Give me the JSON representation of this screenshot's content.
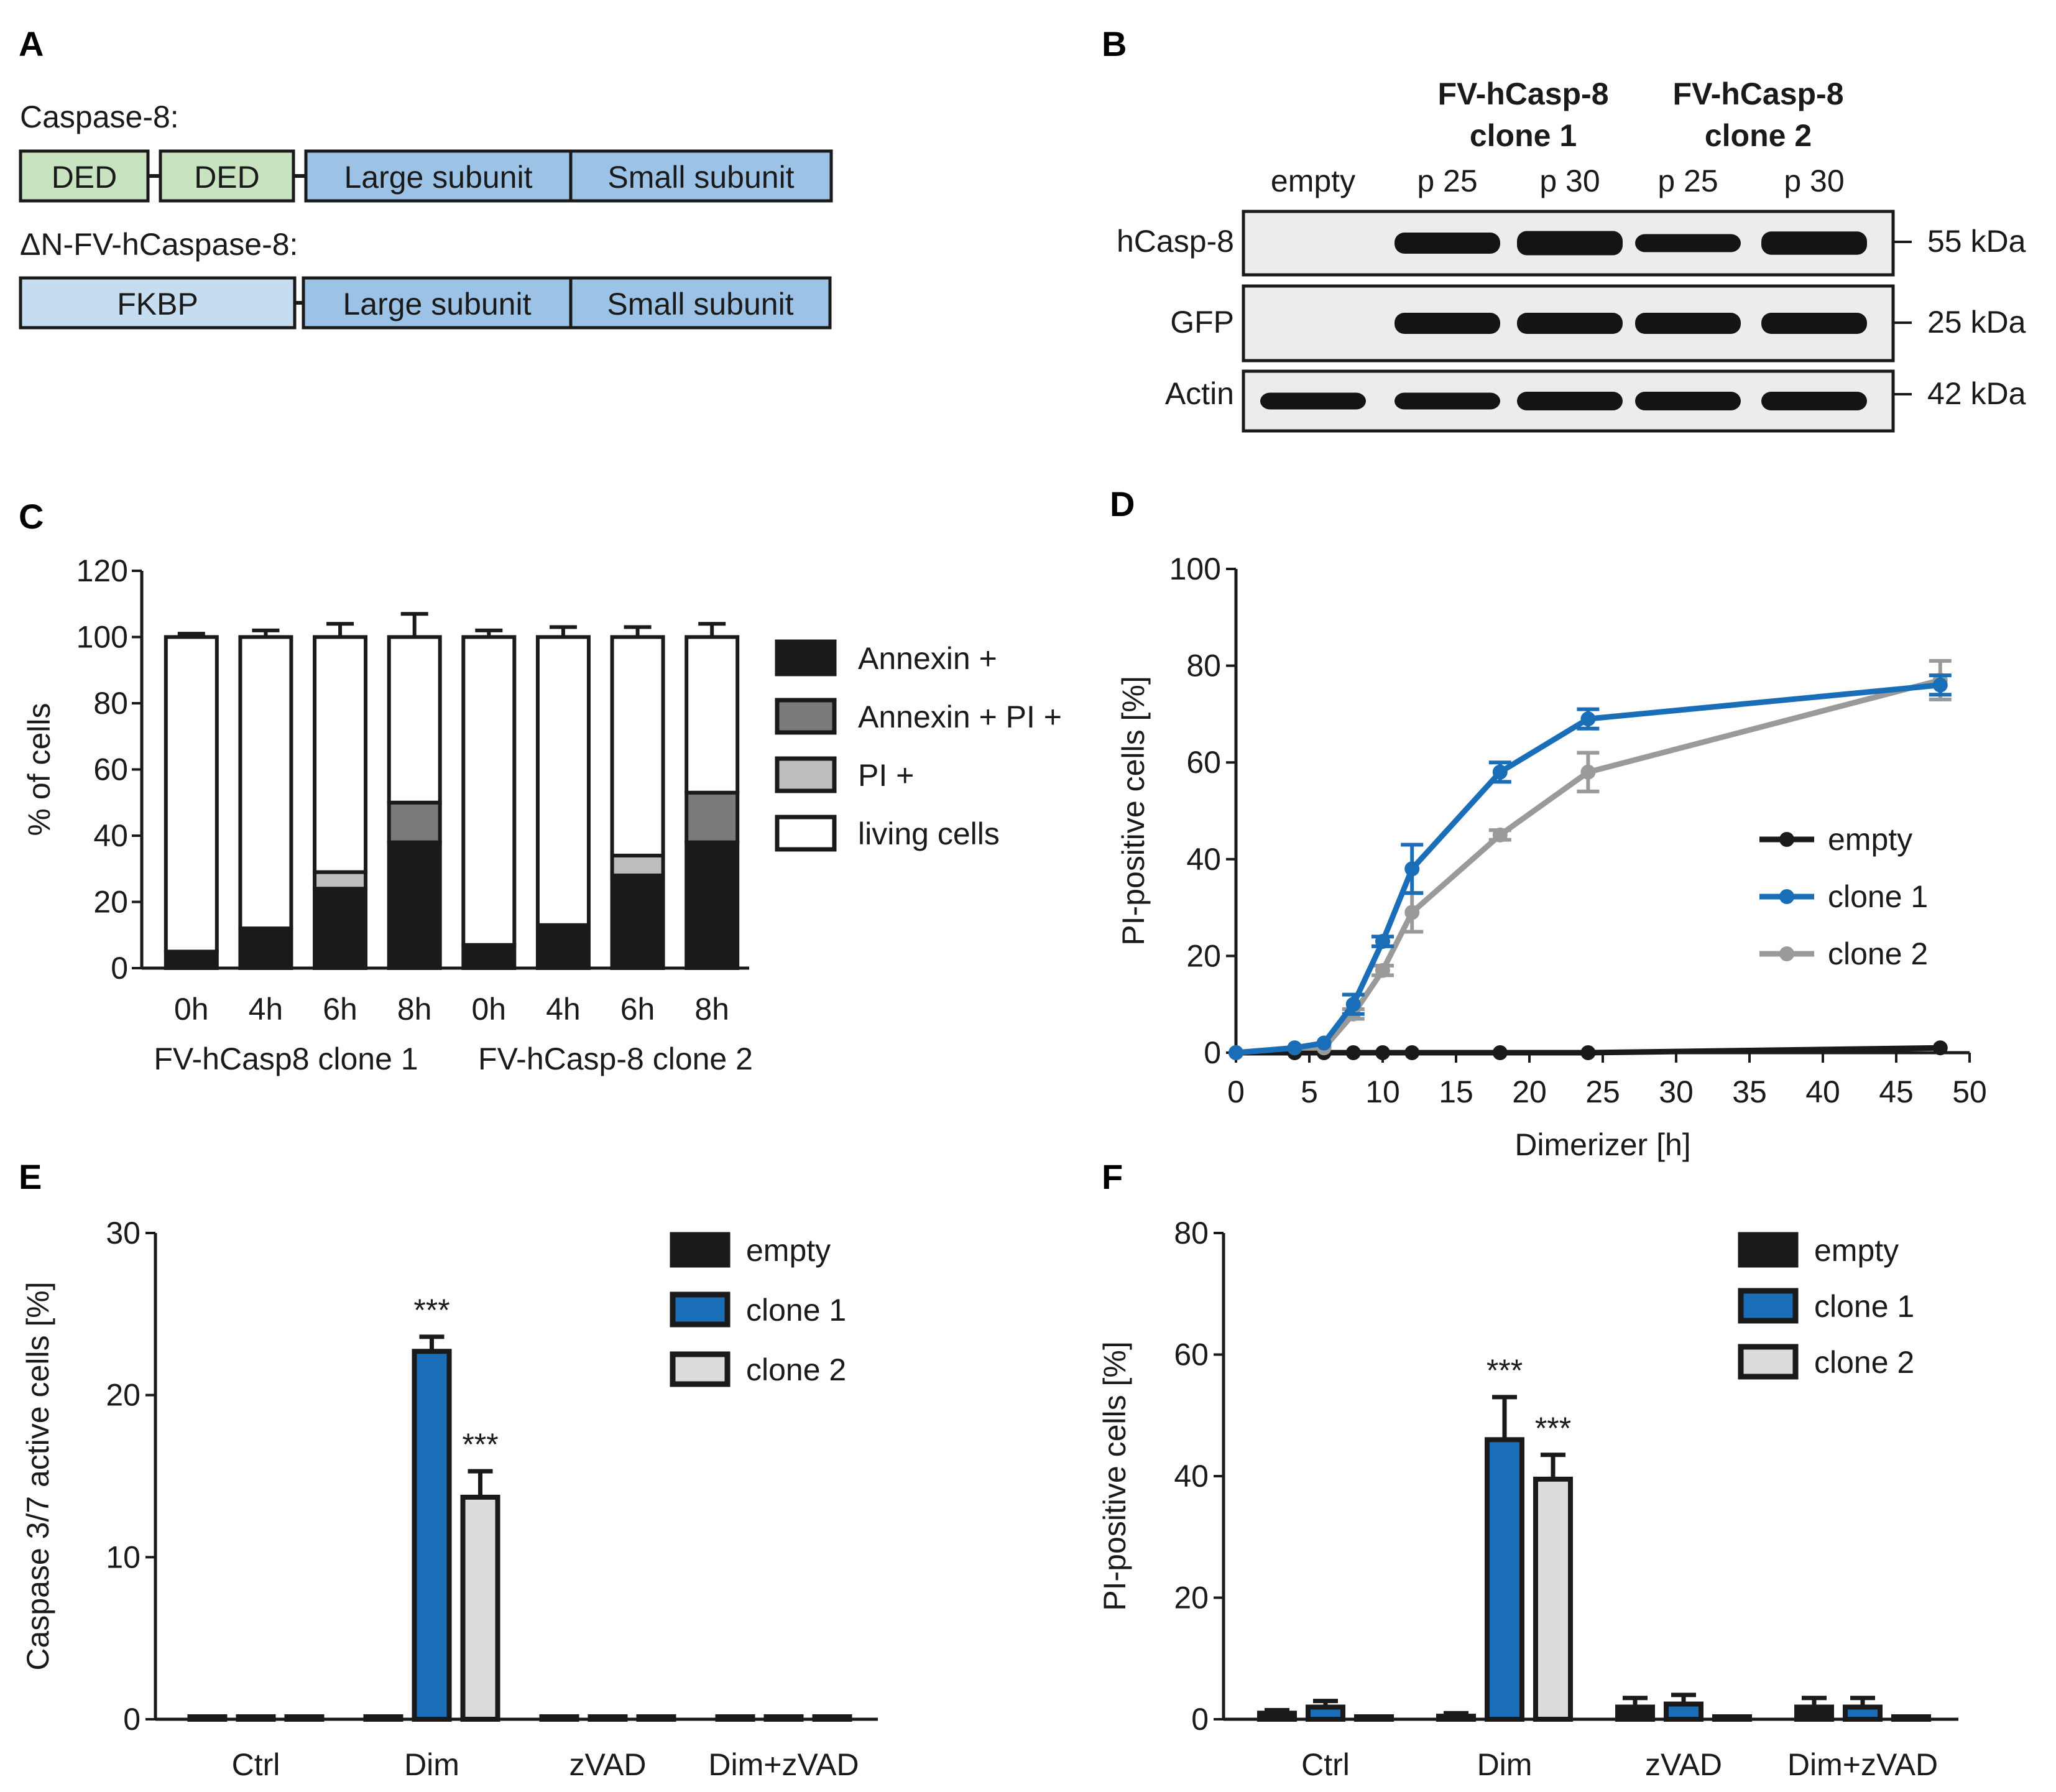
{
  "colors": {
    "black": "#1a1a1a",
    "blue": "#1a6eb8",
    "grey": "#9a9a9a",
    "light_grey": "#dcdcdc",
    "dark_grey": "#7a7a7a",
    "mid_grey": "#bdbdbd",
    "green_box": "#c8e3c0",
    "light_blue_box": "#c6dcf0",
    "blue_box": "#9cc3e6"
  },
  "panel_a": {
    "letter": "A",
    "caspase8_title": "Caspase-8:",
    "caspase8_domains": [
      "DED",
      "DED",
      "Large subunit",
      "Small subunit"
    ],
    "fv_title": "ΔN-FV-hCaspase-8:",
    "fv_domains": [
      "FKBP",
      "Large subunit",
      "Small subunit"
    ]
  },
  "panel_b": {
    "letter": "B",
    "group1": [
      "FV-hCasp-8",
      "clone 1"
    ],
    "group2": [
      "FV-hCasp-8",
      "clone 2"
    ],
    "lanes": [
      "empty",
      "p 25",
      "p 30",
      "p 25",
      "p 30"
    ],
    "blots": [
      {
        "name": "hCasp-8",
        "size": "55 kDa"
      },
      {
        "name": "GFP",
        "size": "25 kDa"
      },
      {
        "name": "Actin",
        "size": "42 kDa"
      }
    ]
  },
  "chart_data": [
    {
      "panel": "C",
      "type": "bar",
      "stacked": true,
      "ylabel": "% of cells",
      "ylim": [
        0,
        120
      ],
      "yticks": [
        0,
        20,
        40,
        60,
        80,
        100,
        120
      ],
      "categories": [
        "0h",
        "4h",
        "6h",
        "8h",
        "0h",
        "4h",
        "6h",
        "8h"
      ],
      "group_labels": [
        "FV-hCasp8 clone 1",
        "FV-hCasp-8 clone 2"
      ],
      "series": [
        {
          "name": "Annexin +",
          "values": [
            5,
            12,
            24,
            38,
            7,
            13,
            28,
            38
          ]
        },
        {
          "name": "Annexin + PI +",
          "values": [
            0,
            0,
            0,
            12,
            0,
            0,
            0,
            15
          ]
        },
        {
          "name": "PI +",
          "values": [
            0,
            0,
            5,
            0,
            0,
            0,
            6,
            0
          ]
        },
        {
          "name": "living cells",
          "values": [
            95,
            88,
            71,
            50,
            93,
            87,
            66,
            47
          ]
        }
      ],
      "error_tops": [
        1,
        2,
        4,
        7,
        2,
        3,
        3,
        4
      ]
    },
    {
      "panel": "D",
      "type": "line",
      "xlabel": "Dimerizer [h]",
      "ylabel": "PI-positive cells [%]",
      "xlim": [
        0,
        50
      ],
      "ylim": [
        0,
        100
      ],
      "xticks": [
        0,
        5,
        10,
        15,
        20,
        25,
        30,
        35,
        40,
        45,
        50
      ],
      "yticks": [
        0,
        20,
        40,
        60,
        80,
        100
      ],
      "series": [
        {
          "name": "empty",
          "x": [
            0,
            4,
            6,
            8,
            10,
            12,
            18,
            24,
            48
          ],
          "y": [
            0,
            0,
            0,
            0,
            0,
            0,
            0,
            0,
            1
          ],
          "err": [
            0,
            0,
            0,
            0,
            0,
            0,
            0,
            0,
            0
          ]
        },
        {
          "name": "clone 1",
          "x": [
            0,
            4,
            6,
            8,
            10,
            12,
            18,
            24,
            48
          ],
          "y": [
            0,
            1,
            2,
            10,
            23,
            38,
            58,
            69,
            76
          ],
          "err": [
            0,
            0,
            0,
            2,
            1,
            5,
            2,
            2,
            2
          ]
        },
        {
          "name": "clone 2",
          "x": [
            0,
            4,
            6,
            8,
            10,
            12,
            18,
            24,
            48
          ],
          "y": [
            0,
            1,
            1,
            8,
            17,
            29,
            45,
            58,
            77
          ],
          "err": [
            0,
            0,
            0,
            1,
            1,
            4,
            1,
            4,
            4
          ]
        }
      ]
    },
    {
      "panel": "E",
      "type": "bar",
      "ylabel": "Caspase 3/7 active cells [%]",
      "ylim": [
        0,
        30
      ],
      "yticks": [
        0,
        10,
        20,
        30
      ],
      "categories": [
        "Ctrl",
        "Dim",
        "zVAD",
        "Dim+zVAD"
      ],
      "series": [
        {
          "name": "empty",
          "values": [
            0,
            0,
            0,
            0
          ],
          "err": [
            0,
            0,
            0,
            0
          ]
        },
        {
          "name": "clone 1",
          "values": [
            0,
            22.7,
            0,
            0
          ],
          "err": [
            0,
            0.9,
            0,
            0
          ]
        },
        {
          "name": "clone 2",
          "values": [
            0,
            13.7,
            0,
            0
          ],
          "err": [
            0,
            1.6,
            0,
            0
          ]
        }
      ],
      "annotations": [
        {
          "category": "Dim",
          "series": "clone 1",
          "text": "***"
        },
        {
          "category": "Dim",
          "series": "clone 2",
          "text": "***"
        }
      ]
    },
    {
      "panel": "F",
      "type": "bar",
      "ylabel": "PI-positive cells [%]",
      "ylim": [
        0,
        80
      ],
      "yticks": [
        0,
        20,
        40,
        60,
        80
      ],
      "categories": [
        "Ctrl",
        "Dim",
        "zVAD",
        "Dim+zVAD"
      ],
      "series": [
        {
          "name": "empty",
          "values": [
            1,
            0.5,
            2,
            2
          ],
          "err": [
            0.5,
            0.5,
            1.5,
            1.5
          ]
        },
        {
          "name": "clone 1",
          "values": [
            2,
            46,
            2.5,
            2
          ],
          "err": [
            1,
            7,
            1.5,
            1.5
          ]
        },
        {
          "name": "clone 2",
          "values": [
            0,
            39.5,
            0,
            0
          ],
          "err": [
            0,
            4,
            0,
            0
          ]
        }
      ],
      "annotations": [
        {
          "category": "Dim",
          "series": "clone 1",
          "text": "***"
        },
        {
          "category": "Dim",
          "series": "clone 2",
          "text": "***"
        }
      ]
    }
  ]
}
